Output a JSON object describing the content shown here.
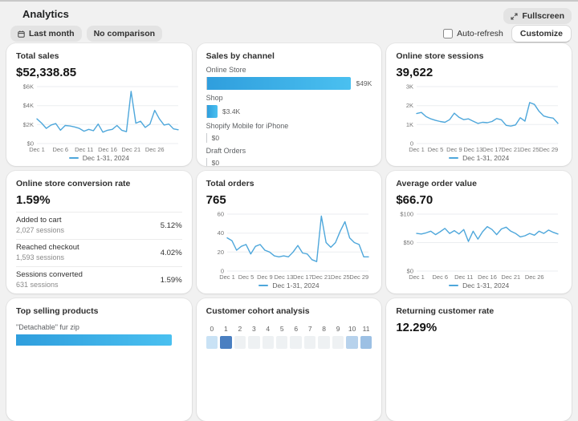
{
  "page": {
    "title": "Analytics"
  },
  "header": {
    "date_range_label": "Last month",
    "comparison_label": "No comparison",
    "fullscreen_label": "Fullscreen",
    "auto_refresh_label": "Auto-refresh",
    "customize_label": "Customize"
  },
  "colors": {
    "accent": "#4ea7db",
    "grid": "#ebedf0",
    "axis_text": "#757575",
    "bar_from": "#2f9edd",
    "bar_to": "#4ac0f0"
  },
  "cards": {
    "total_sales": {
      "title": "Total sales",
      "value": "$52,338.85"
    },
    "sales_by_channel": {
      "title": "Sales by channel"
    },
    "online_store_sessions": {
      "title": "Online store sessions",
      "value": "39,622"
    },
    "conversion": {
      "title": "Online store conversion rate",
      "value": "1.59%",
      "steps": [
        {
          "label": "Added to cart",
          "sessions": "2,027 sessions",
          "rate": "5.12%"
        },
        {
          "label": "Reached checkout",
          "sessions": "1,593 sessions",
          "rate": "4.02%"
        },
        {
          "label": "Sessions converted",
          "sessions": "631 sessions",
          "rate": "1.59%"
        }
      ]
    },
    "total_orders": {
      "title": "Total orders",
      "value": "765"
    },
    "aov": {
      "title": "Average order value",
      "value": "$66.70"
    },
    "top_products": {
      "title": "Top selling products",
      "first_product": "\"Detachable\" fur zip"
    },
    "cohort": {
      "title": "Customer cohort analysis"
    },
    "returning": {
      "title": "Returning customer rate",
      "value": "12.29%"
    }
  },
  "chart_data": [
    {
      "type": "line",
      "title": "Total sales",
      "series": [
        {
          "name": "Dec 1-31, 2024",
          "values": [
            2600,
            2150,
            1600,
            1950,
            2100,
            1400,
            1900,
            1850,
            1750,
            1600,
            1300,
            1500,
            1350,
            2050,
            1200,
            1400,
            1500,
            1900,
            1400,
            1250,
            5500,
            2150,
            2350,
            1700,
            2050,
            3500,
            2600,
            1950,
            2050,
            1550,
            1450
          ]
        }
      ],
      "ylim": [
        0,
        6000
      ],
      "yticks": [
        {
          "v": 0,
          "label": "$0"
        },
        {
          "v": 2000,
          "label": "$2K"
        },
        {
          "v": 4000,
          "label": "$4K"
        },
        {
          "v": 6000,
          "label": "$6K"
        }
      ],
      "xticks": [
        {
          "i": 0,
          "label": "Dec 1"
        },
        {
          "i": 5,
          "label": "Dec 6"
        },
        {
          "i": 10,
          "label": "Dec 11"
        },
        {
          "i": 15,
          "label": "Dec 16"
        },
        {
          "i": 20,
          "label": "Dec 21"
        },
        {
          "i": 25,
          "label": "Dec 26"
        }
      ]
    },
    {
      "type": "bar",
      "title": "Sales by channel",
      "categories": [
        "Online Store",
        "Shop",
        "Shopify Mobile for iPhone",
        "Draft Orders"
      ],
      "values": [
        49000,
        3400,
        0,
        0
      ],
      "value_labels": [
        "$49K",
        "$3.4K",
        "$0",
        "$0"
      ],
      "pcts": [
        93,
        6.5,
        0,
        0
      ]
    },
    {
      "type": "line",
      "title": "Online store sessions",
      "series": [
        {
          "name": "Dec 1-31, 2024",
          "values": [
            1580,
            1640,
            1420,
            1300,
            1220,
            1160,
            1120,
            1260,
            1600,
            1380,
            1260,
            1300,
            1180,
            1060,
            1120,
            1100,
            1160,
            1320,
            1250,
            960,
            920,
            980,
            1360,
            1180,
            2160,
            2060,
            1700,
            1450,
            1380,
            1340,
            1060
          ]
        }
      ],
      "ylim": [
        0,
        3000
      ],
      "yticks": [
        {
          "v": 0,
          "label": "0"
        },
        {
          "v": 1000,
          "label": "1K"
        },
        {
          "v": 2000,
          "label": "2K"
        },
        {
          "v": 3000,
          "label": "3K"
        }
      ],
      "xticks": [
        {
          "i": 0,
          "label": "Dec 1"
        },
        {
          "i": 4,
          "label": "Dec 5"
        },
        {
          "i": 8,
          "label": "Dec 9"
        },
        {
          "i": 12,
          "label": "Dec 13"
        },
        {
          "i": 16,
          "label": "Dec 17"
        },
        {
          "i": 20,
          "label": "Dec 21"
        },
        {
          "i": 24,
          "label": "Dec 25"
        },
        {
          "i": 28,
          "label": "Dec 29"
        }
      ]
    },
    {
      "type": "line",
      "title": "Total orders",
      "series": [
        {
          "name": "Dec 1-31, 2024",
          "values": [
            35,
            32,
            22,
            26,
            28,
            18,
            26,
            28,
            22,
            20,
            16,
            15,
            16,
            15,
            20,
            27,
            19,
            18,
            12,
            10,
            58,
            30,
            25,
            30,
            42,
            52,
            35,
            30,
            28,
            15,
            15
          ]
        }
      ],
      "ylim": [
        0,
        60
      ],
      "yticks": [
        {
          "v": 0,
          "label": "0"
        },
        {
          "v": 20,
          "label": "20"
        },
        {
          "v": 40,
          "label": "40"
        },
        {
          "v": 60,
          "label": "60"
        }
      ],
      "xticks": [
        {
          "i": 0,
          "label": "Dec 1"
        },
        {
          "i": 4,
          "label": "Dec 5"
        },
        {
          "i": 8,
          "label": "Dec 9"
        },
        {
          "i": 12,
          "label": "Dec 13"
        },
        {
          "i": 16,
          "label": "Dec 17"
        },
        {
          "i": 20,
          "label": "Dec 21"
        },
        {
          "i": 24,
          "label": "Dec 25"
        },
        {
          "i": 28,
          "label": "Dec 29"
        }
      ]
    },
    {
      "type": "line",
      "title": "Average order value",
      "series": [
        {
          "name": "Dec 1-31, 2024",
          "values": [
            66,
            65,
            67,
            70,
            64,
            69,
            75,
            66,
            71,
            65,
            73,
            52,
            70,
            56,
            69,
            78,
            73,
            64,
            74,
            77,
            70,
            66,
            60,
            62,
            66,
            63,
            70,
            66,
            72,
            68,
            65
          ]
        }
      ],
      "ylim": [
        0,
        100
      ],
      "yticks": [
        {
          "v": 0,
          "label": "$0"
        },
        {
          "v": 50,
          "label": "$50"
        },
        {
          "v": 100,
          "label": "$100"
        }
      ],
      "xticks": [
        {
          "i": 0,
          "label": "Dec 1"
        },
        {
          "i": 5,
          "label": "Dec 6"
        },
        {
          "i": 10,
          "label": "Dec 11"
        },
        {
          "i": 15,
          "label": "Dec 16"
        },
        {
          "i": 20,
          "label": "Dec 21"
        },
        {
          "i": 25,
          "label": "Dec 26"
        }
      ]
    },
    {
      "type": "heatmap",
      "title": "Customer cohort analysis",
      "columns": [
        "0",
        "1",
        "2",
        "3",
        "4",
        "5",
        "6",
        "7",
        "8",
        "9",
        "10",
        "11"
      ],
      "first_row_colors": [
        "#c9e2f5",
        "#4a7fc1",
        "#eef1f3",
        "#eef1f3",
        "#eef1f3",
        "#eef1f3",
        "#eef1f3",
        "#eef1f3",
        "#eef1f3",
        "#eef1f3",
        "#b7d2ec",
        "#9cc0e4"
      ]
    },
    {
      "type": "bar",
      "title": "Top selling products",
      "categories": [
        "\"Detachable\" fur zip"
      ],
      "pcts": [
        94
      ]
    }
  ]
}
